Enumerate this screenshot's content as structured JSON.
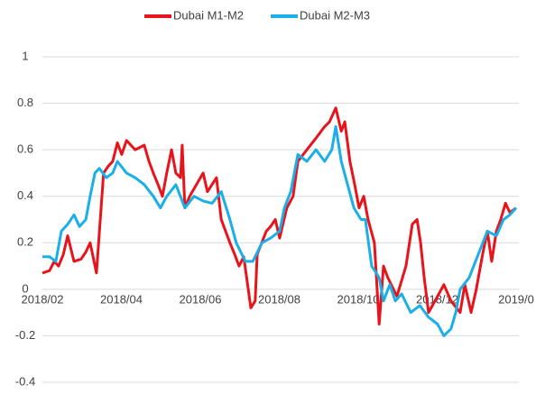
{
  "chart_data": {
    "type": "line",
    "xlim": [
      0,
      12
    ],
    "xticks": [
      {
        "value": 0,
        "label": "2018/02"
      },
      {
        "value": 2,
        "label": "2018/04"
      },
      {
        "value": 4,
        "label": "2018/06"
      },
      {
        "value": 6,
        "label": "2018/08"
      },
      {
        "value": 8,
        "label": "2018/10"
      },
      {
        "value": 10,
        "label": "2018/12"
      },
      {
        "value": 12,
        "label": "2019/0"
      }
    ],
    "ylim": [
      -0.4,
      1
    ],
    "yticks": [
      1,
      {
        "value": 0.8,
        "label": "0.8"
      },
      {
        "value": 0.6,
        "label": "0.6"
      },
      {
        "value": 0.4,
        "label": "0.4"
      },
      {
        "value": 0.2,
        "label": "0.2"
      },
      0,
      {
        "value": -0.2,
        "label": "-0.2"
      },
      {
        "value": -0.4,
        "label": "-0.4"
      }
    ],
    "grid": true,
    "legend": "top",
    "series": [
      {
        "name": "Dubai M1-M2",
        "color": "#e8141c",
        "x": [
          0,
          0.18,
          0.3,
          0.41,
          0.53,
          0.64,
          0.8,
          0.98,
          1.1,
          1.21,
          1.37,
          1.55,
          1.67,
          1.78,
          1.9,
          2.01,
          2.13,
          2.35,
          2.58,
          2.7,
          2.81,
          2.93,
          3.04,
          3.15,
          3.27,
          3.38,
          3.5,
          3.54,
          3.61,
          3.73,
          4.07,
          4.18,
          4.41,
          4.53,
          4.75,
          4.87,
          4.98,
          5.1,
          5.28,
          5.39,
          5.44,
          5.67,
          5.78,
          5.9,
          6.01,
          6.19,
          6.35,
          6.47,
          6.7,
          6.93,
          7.15,
          7.27,
          7.43,
          7.57,
          7.66,
          7.79,
          7.91,
          8.02,
          8.14,
          8.25,
          8.41,
          8.53,
          8.64,
          8.75,
          8.98,
          9.21,
          9.37,
          9.49,
          9.58,
          9.67,
          9.78,
          10.01,
          10.17,
          10.35,
          10.58,
          10.7,
          10.86,
          10.99,
          11.15,
          11.27,
          11.38,
          11.5,
          11.61,
          11.73,
          11.84,
          12
        ],
        "values": [
          0.07,
          0.08,
          0.12,
          0.1,
          0.15,
          0.23,
          0.12,
          0.13,
          0.16,
          0.2,
          0.07,
          0.5,
          0.53,
          0.55,
          0.63,
          0.58,
          0.64,
          0.6,
          0.62,
          0.55,
          0.5,
          0.45,
          0.4,
          0.5,
          0.6,
          0.5,
          0.48,
          0.62,
          0.35,
          0.4,
          0.5,
          0.42,
          0.48,
          0.3,
          0.2,
          0.15,
          0.1,
          0.14,
          -0.08,
          -0.05,
          0.15,
          0.25,
          0.27,
          0.3,
          0.22,
          0.35,
          0.4,
          0.55,
          0.6,
          0.65,
          0.7,
          0.72,
          0.78,
          0.68,
          0.72,
          0.55,
          0.45,
          0.35,
          0.4,
          0.3,
          0.2,
          -0.15,
          0.1,
          0.05,
          -0.03,
          0.1,
          0.28,
          0.3,
          0.2,
          0.05,
          -0.1,
          -0.03,
          0.02,
          -0.05,
          -0.1,
          0.02,
          -0.1,
          0,
          0.15,
          0.25,
          0.12,
          0.25,
          0.3,
          0.37,
          0.33,
          0.35
        ]
      },
      {
        "name": "Dubai M2-M3",
        "color": "#1aafe6",
        "x": [
          0,
          0.18,
          0.34,
          0.48,
          0.64,
          0.8,
          0.94,
          1.1,
          1.21,
          1.33,
          1.44,
          1.62,
          1.78,
          1.9,
          2.13,
          2.35,
          2.58,
          2.81,
          2.99,
          3.15,
          3.38,
          3.61,
          3.84,
          4.07,
          4.3,
          4.53,
          4.75,
          4.91,
          5.14,
          5.33,
          5.56,
          5.78,
          6.01,
          6.13,
          6.29,
          6.47,
          6.7,
          6.93,
          7.15,
          7.33,
          7.43,
          7.57,
          7.73,
          7.89,
          8.07,
          8.18,
          8.34,
          8.53,
          8.64,
          8.8,
          8.94,
          9.1,
          9.33,
          9.56,
          9.78,
          10.01,
          10.17,
          10.35,
          10.47,
          10.58,
          10.81,
          11.04,
          11.27,
          11.5,
          11.68,
          11.84,
          12
        ],
        "values": [
          0.14,
          0.14,
          0.12,
          0.25,
          0.28,
          0.32,
          0.27,
          0.3,
          0.4,
          0.5,
          0.52,
          0.48,
          0.5,
          0.55,
          0.5,
          0.48,
          0.45,
          0.4,
          0.35,
          0.4,
          0.45,
          0.35,
          0.4,
          0.38,
          0.37,
          0.42,
          0.3,
          0.2,
          0.12,
          0.12,
          0.2,
          0.22,
          0.25,
          0.35,
          0.42,
          0.58,
          0.55,
          0.6,
          0.55,
          0.6,
          0.7,
          0.55,
          0.45,
          0.35,
          0.3,
          0.3,
          0.1,
          0.05,
          -0.05,
          0.02,
          -0.05,
          -0.02,
          -0.1,
          -0.07,
          -0.12,
          -0.15,
          -0.2,
          -0.17,
          -0.1,
          0,
          0.05,
          0.15,
          0.25,
          0.23,
          0.3,
          0.32,
          0.35
        ]
      }
    ]
  }
}
